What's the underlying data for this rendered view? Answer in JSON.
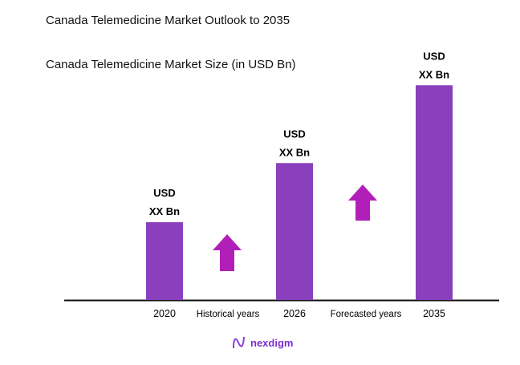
{
  "title": "Canada Telemedicine Market Outlook to 2035",
  "subtitle": "Canada Telemedicine Market Size (in USD Bn)",
  "chart_data": {
    "type": "bar",
    "categories": [
      "2020",
      "2026",
      "2035"
    ],
    "data_labels": [
      [
        "USD",
        "XX Bn"
      ],
      [
        "USD",
        "XX Bn"
      ],
      [
        "USD",
        "XX Bn"
      ]
    ],
    "relative_values": [
      1,
      1.76,
      2.76
    ],
    "period_labels": [
      "Historical years",
      "Forecasted years"
    ],
    "bar_color": "#8a3fbc",
    "arrow_color": "#b21fb8",
    "grid": false,
    "legend": "none"
  },
  "logo": {
    "text": "nexdigm"
  }
}
